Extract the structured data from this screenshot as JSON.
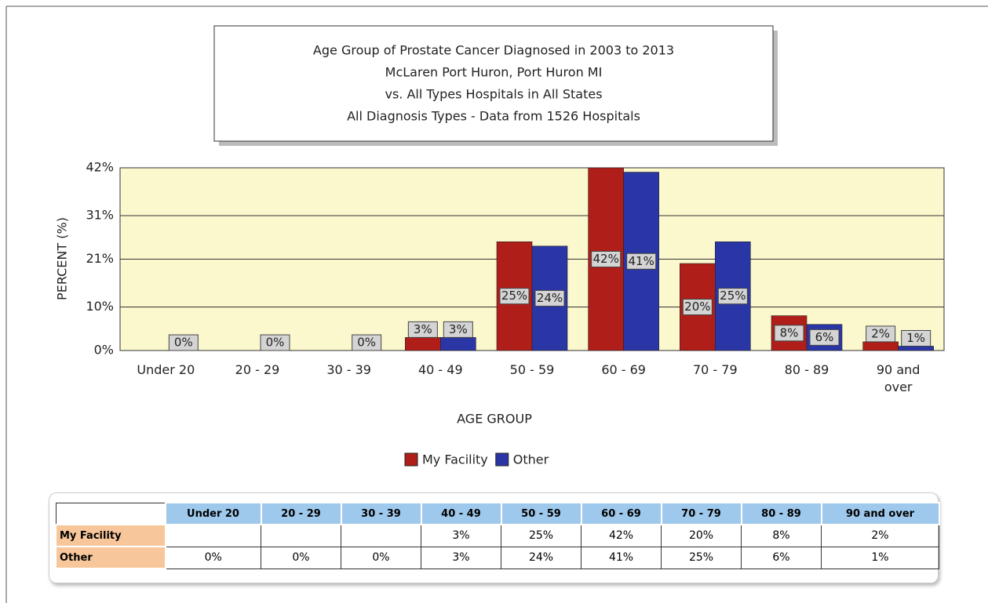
{
  "chart_data": {
    "type": "bar",
    "title": [
      "Age Group of Prostate Cancer Diagnosed in 2003 to 2013",
      "McLaren Port Huron, Port Huron MI",
      "vs. All Types Hospitals in All States",
      "All Diagnosis Types  - Data from 1526 Hospitals"
    ],
    "x_label": "AGE GROUP",
    "y_label": "PERCENT (%)",
    "categories": [
      "Under 20",
      "20 - 29",
      "30 - 39",
      "40 - 49",
      "50 - 59",
      "60 - 69",
      "70 - 79",
      "80 - 89",
      "90 and over"
    ],
    "series": [
      {
        "name": "My Facility",
        "color": "#b01e1a",
        "values": [
          null,
          null,
          null,
          3,
          25,
          42,
          20,
          8,
          2
        ],
        "value_labels": [
          null,
          null,
          null,
          "3%",
          "25%",
          "42%",
          "20%",
          "8%",
          "2%"
        ]
      },
      {
        "name": "Other",
        "color": "#2b36a6",
        "values": [
          0,
          0,
          0,
          3,
          24,
          41,
          25,
          6,
          1
        ],
        "value_labels": [
          "0%",
          "0%",
          "0%",
          "3%",
          "24%",
          "41%",
          "25%",
          "6%",
          "1%"
        ]
      }
    ],
    "ylim": [
      0,
      42
    ],
    "yticks": [
      {
        "value": 0,
        "label": "0%"
      },
      {
        "value": 10,
        "label": "10%"
      },
      {
        "value": 21,
        "label": "21%"
      },
      {
        "value": 31,
        "label": "31%"
      },
      {
        "value": 42,
        "label": "42%"
      }
    ],
    "grid": true
  }
}
